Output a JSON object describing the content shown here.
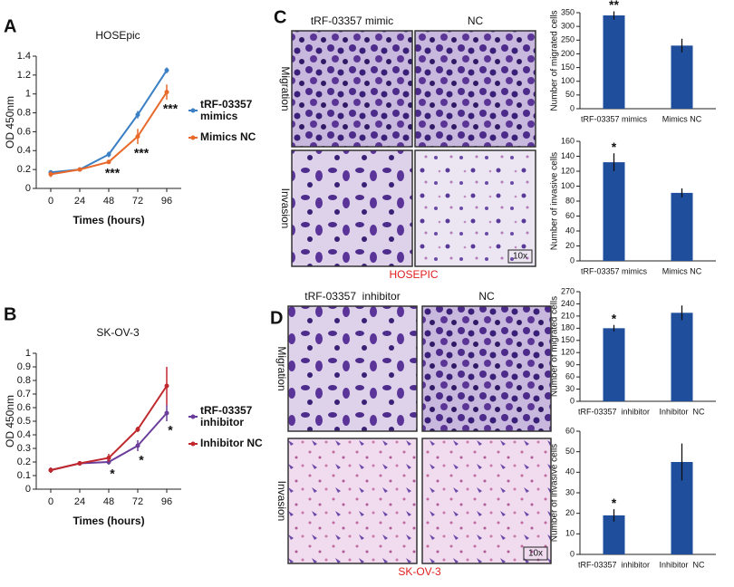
{
  "chart_data": [
    {
      "type": "line",
      "panel": "A",
      "title": "HOSEpic",
      "x_label": "Times (hours)",
      "y_label": "OD 450nm",
      "x": [
        0,
        24,
        48,
        72,
        96
      ],
      "xlim": [
        -12,
        108
      ],
      "xticks": [
        0,
        24,
        48,
        72,
        96
      ],
      "ylim": [
        0,
        1.4
      ],
      "yticks": [
        0,
        0.2,
        0.4,
        0.6,
        0.8,
        1,
        1.2,
        1.4
      ],
      "series": [
        {
          "name": "tRF-03357 mimics",
          "color": "#3b7fc4",
          "values": [
            0.17,
            0.2,
            0.36,
            0.78,
            1.25
          ],
          "errors": [
            0.02,
            0.01,
            0.03,
            0.04,
            0.03
          ]
        },
        {
          "name": "Mimics NC",
          "color": "#e8692a",
          "values": [
            0.15,
            0.2,
            0.28,
            0.55,
            1.02
          ],
          "errors": [
            0.03,
            0.01,
            0.02,
            0.08,
            0.08
          ]
        }
      ],
      "markers": [
        null,
        null,
        "***",
        "***",
        "***"
      ]
    },
    {
      "type": "line",
      "panel": "B",
      "title": "SK-OV-3",
      "x_label": "Times (hours)",
      "y_label": "OD 450nm",
      "x": [
        0,
        24,
        48,
        72,
        96
      ],
      "xlim": [
        -12,
        108
      ],
      "xticks": [
        0,
        24,
        48,
        72,
        96
      ],
      "ylim": [
        0,
        1
      ],
      "yticks": [
        0,
        0.1,
        0.2,
        0.3,
        0.4,
        0.5,
        0.6,
        0.7,
        0.8,
        0.9,
        1
      ],
      "series": [
        {
          "name": "tRF-03357 inhibitor",
          "color": "#6a3d9a",
          "values": [
            0.14,
            0.19,
            0.2,
            0.32,
            0.56
          ],
          "errors": [
            0.02,
            0.01,
            0.02,
            0.04,
            0.06
          ]
        },
        {
          "name": "Inhibitor NC",
          "color": "#c0282d",
          "values": [
            0.14,
            0.19,
            0.23,
            0.44,
            0.76
          ],
          "errors": [
            0.02,
            0.01,
            0.03,
            0.02,
            0.14
          ]
        }
      ],
      "markers": [
        null,
        null,
        "*",
        "*",
        "*"
      ]
    },
    {
      "type": "bar",
      "y_label": "Number of migrated cells",
      "categories": [
        "tRF-03357 mimics",
        "Mimics NC"
      ],
      "values": [
        340,
        230
      ],
      "errors": [
        15,
        25
      ],
      "color": "#1f4e9c",
      "ylim": [
        0,
        350
      ],
      "yticks": [
        0,
        50,
        100,
        150,
        200,
        250,
        300,
        350
      ],
      "markers": [
        "**",
        null
      ]
    },
    {
      "type": "bar",
      "y_label": "Number of invasive cells",
      "categories": [
        "tRF-03357 mimics",
        "Mimics NC"
      ],
      "values": [
        132,
        91
      ],
      "errors": [
        12,
        6
      ],
      "color": "#1f4e9c",
      "ylim": [
        0,
        160
      ],
      "yticks": [
        0,
        20,
        40,
        60,
        80,
        100,
        120,
        140,
        160
      ],
      "markers": [
        "*",
        null
      ]
    },
    {
      "type": "bar",
      "y_label": "Number of migrated cells",
      "categories": [
        "tRF-03357  inhibitor",
        "Inhibitor  NC"
      ],
      "values": [
        180,
        218
      ],
      "errors": [
        8,
        18
      ],
      "color": "#1f4e9c",
      "ylim": [
        0,
        270
      ],
      "yticks": [
        0,
        30,
        60,
        90,
        120,
        150,
        180,
        210,
        240,
        270
      ],
      "markers": [
        "*",
        null
      ]
    },
    {
      "type": "bar",
      "y_label": "Number of invasive cells",
      "categories": [
        "tRF-03357  inhibitor",
        "Inhibitor  NC"
      ],
      "values": [
        19,
        45
      ],
      "errors": [
        3,
        9
      ],
      "color": "#1f4e9c",
      "ylim": [
        0,
        60
      ],
      "yticks": [
        0,
        10,
        20,
        30,
        40,
        50,
        60
      ],
      "markers": [
        "*",
        null
      ]
    }
  ],
  "image_panels": [
    {
      "label": "C",
      "columns": [
        "tRF-03357 mimic",
        "NC"
      ],
      "rows": [
        "Migration",
        "Invasion"
      ],
      "caption": "HOSEPIC",
      "scale": "10x"
    },
    {
      "label": "D",
      "columns": [
        "tRF-03357  inhibitor",
        "NC"
      ],
      "rows": [
        "Migration",
        "Invasion"
      ],
      "caption": "SK-OV-3",
      "scale": "10x"
    }
  ]
}
